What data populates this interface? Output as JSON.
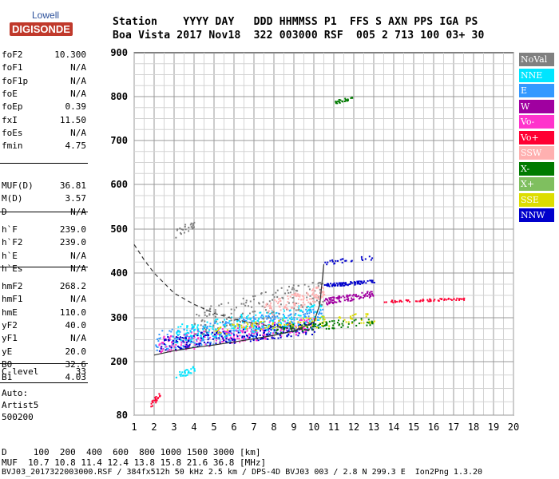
{
  "logo": {
    "top": "Lowell",
    "main": "DIGISONDE"
  },
  "header": {
    "row1": "Station    YYYY DAY   DDD HHMMSS P1  FFS S AXN PPS IGA PS",
    "row2": "Boa Vista 2017 Nov18  322 003000 RSF  005 2 713 100 03+ 30"
  },
  "params": {
    "group1": [
      {
        "k": "foF2",
        "v": "10.300"
      },
      {
        "k": "foF1",
        "v": "N/A"
      },
      {
        "k": "foF1p",
        "v": "N/A"
      },
      {
        "k": "foE",
        "v": "N/A"
      },
      {
        "k": "foEp",
        "v": "0.39"
      },
      {
        "k": "fxI",
        "v": "11.50"
      },
      {
        "k": "foEs",
        "v": "N/A"
      },
      {
        "k": "fmin",
        "v": "4.75"
      }
    ],
    "group2": [
      {
        "k": "MUF(D)",
        "v": "36.81"
      },
      {
        "k": "M(D)",
        "v": "3.57"
      },
      {
        "k": "D",
        "v": "N/A"
      }
    ],
    "group3": [
      {
        "k": "h`F",
        "v": "239.0"
      },
      {
        "k": "h`F2",
        "v": "239.0"
      },
      {
        "k": "h`E",
        "v": "N/A"
      },
      {
        "k": "h`Es",
        "v": "N/A"
      }
    ],
    "group4": [
      {
        "k": "hmF2",
        "v": "268.2"
      },
      {
        "k": "hmF1",
        "v": "N/A"
      },
      {
        "k": "hmE",
        "v": "110.0"
      },
      {
        "k": "yF2",
        "v": "40.0"
      },
      {
        "k": "yF1",
        "v": "N/A"
      },
      {
        "k": "yE",
        "v": "20.0"
      },
      {
        "k": "B0",
        "v": "32.6"
      },
      {
        "k": "B1",
        "v": "4.03"
      }
    ],
    "group5": [
      {
        "k": "C-level",
        "v": "33"
      }
    ]
  },
  "auto": {
    "line1": "Auto:",
    "line2": "Artist5",
    "line3": "500200"
  },
  "legend": [
    {
      "label": "NoVal",
      "color": "#808080"
    },
    {
      "label": "NNE",
      "color": "#00e5ff"
    },
    {
      "label": "E",
      "color": "#3399ff"
    },
    {
      "label": "W",
      "color": "#a000a0"
    },
    {
      "label": "Vo-",
      "color": "#ff33cc"
    },
    {
      "label": "Vo+",
      "color": "#ff0033"
    },
    {
      "label": "SSW",
      "color": "#ffb0b0"
    },
    {
      "label": "X-",
      "color": "#007a00"
    },
    {
      "label": "X+",
      "color": "#7fbf5f"
    },
    {
      "label": "SSE",
      "color": "#dddd00"
    },
    {
      "label": "NNW",
      "color": "#0000cc"
    }
  ],
  "footer": {
    "line1": "D     100  200  400  600  800 1000 1500 3000 [km]",
    "line2": "MUF  10.7 10.8 11.4 12.4 13.8 15.8 21.6 36.8 [MHz]",
    "line3": "BVJ03_2017322003000.RSF / 384fx512h 50 kHz 2.5 km / DPS-4D BVJ03 003 / 2.8 N 299.3 E  Ion2Png 1.3.20"
  },
  "chart_data": {
    "type": "scatter",
    "x_ticks": [
      "1",
      "2",
      "3",
      "4",
      "5",
      "6",
      "7",
      "8",
      "9",
      "10",
      "11",
      "12",
      "13",
      "14",
      "15",
      "16",
      "17",
      "18",
      "19",
      "20"
    ],
    "y_ticks": [
      "80",
      "200",
      "300",
      "400",
      "500",
      "600",
      "700",
      "800",
      "900"
    ],
    "xlim": [
      1,
      20
    ],
    "ylim": [
      80,
      900
    ],
    "grid": true,
    "legend_position": "right",
    "clusters": [
      {
        "x_range": [
          2.0,
          10.5
        ],
        "y_range": [
          220,
          320
        ],
        "color": "#3399ff",
        "n": 350
      },
      {
        "x_range": [
          2.2,
          10.0
        ],
        "y_range": [
          220,
          300
        ],
        "color": "#ff33cc",
        "n": 250
      },
      {
        "x_range": [
          2.2,
          10.0
        ],
        "y_range": [
          225,
          290
        ],
        "color": "#0000cc",
        "n": 220
      },
      {
        "x_range": [
          3.0,
          10.5
        ],
        "y_range": [
          240,
          330
        ],
        "color": "#00e5ff",
        "n": 200
      },
      {
        "x_range": [
          4.0,
          10.5
        ],
        "y_range": [
          260,
          380
        ],
        "color": "#808080",
        "n": 150
      },
      {
        "x_range": [
          7.5,
          10.5
        ],
        "y_range": [
          300,
          370
        ],
        "color": "#ffb0b0",
        "n": 120
      },
      {
        "x_range": [
          5.0,
          13.0
        ],
        "y_range": [
          260,
          310
        ],
        "color": "#dddd00",
        "n": 120
      },
      {
        "x_range": [
          8.0,
          13.0
        ],
        "y_range": [
          265,
          300
        ],
        "color": "#007a00",
        "n": 80
      },
      {
        "x_range": [
          10.5,
          13.0
        ],
        "y_range": [
          330,
          360
        ],
        "color": "#a000a0",
        "n": 100
      },
      {
        "x_range": [
          10.5,
          13.0
        ],
        "y_range": [
          370,
          385
        ],
        "color": "#0000cc",
        "n": 80
      },
      {
        "x_range": [
          13.5,
          17.5
        ],
        "y_range": [
          335,
          345
        ],
        "color": "#ff0033",
        "n": 60
      },
      {
        "x_range": [
          11.0,
          12.0
        ],
        "y_range": [
          785,
          800
        ],
        "color": "#007a00",
        "n": 25
      },
      {
        "x_range": [
          3.0,
          4.0
        ],
        "y_range": [
          480,
          520
        ],
        "color": "#808080",
        "n": 25
      },
      {
        "x_range": [
          3.0,
          4.0
        ],
        "y_range": [
          160,
          190
        ],
        "color": "#00e5ff",
        "n": 30
      },
      {
        "x_range": [
          1.8,
          2.3
        ],
        "y_range": [
          95,
          130
        ],
        "color": "#ff0033",
        "n": 20
      },
      {
        "x_range": [
          10.5,
          13.0
        ],
        "y_range": [
          420,
          440
        ],
        "color": "#0000cc",
        "n": 25
      }
    ],
    "trace_line": {
      "x": [
        2,
        3,
        4,
        5,
        6,
        7,
        8,
        9,
        10,
        10.3,
        10.5
      ],
      "y": [
        215,
        225,
        232,
        238,
        245,
        252,
        260,
        270,
        290,
        330,
        420
      ]
    },
    "dashed_line": {
      "x": [
        1,
        1.5,
        2,
        3,
        4,
        5,
        6,
        7,
        8,
        9,
        10
      ],
      "y": [
        465,
        430,
        400,
        355,
        330,
        310,
        297,
        287,
        280,
        275,
        272
      ]
    }
  }
}
